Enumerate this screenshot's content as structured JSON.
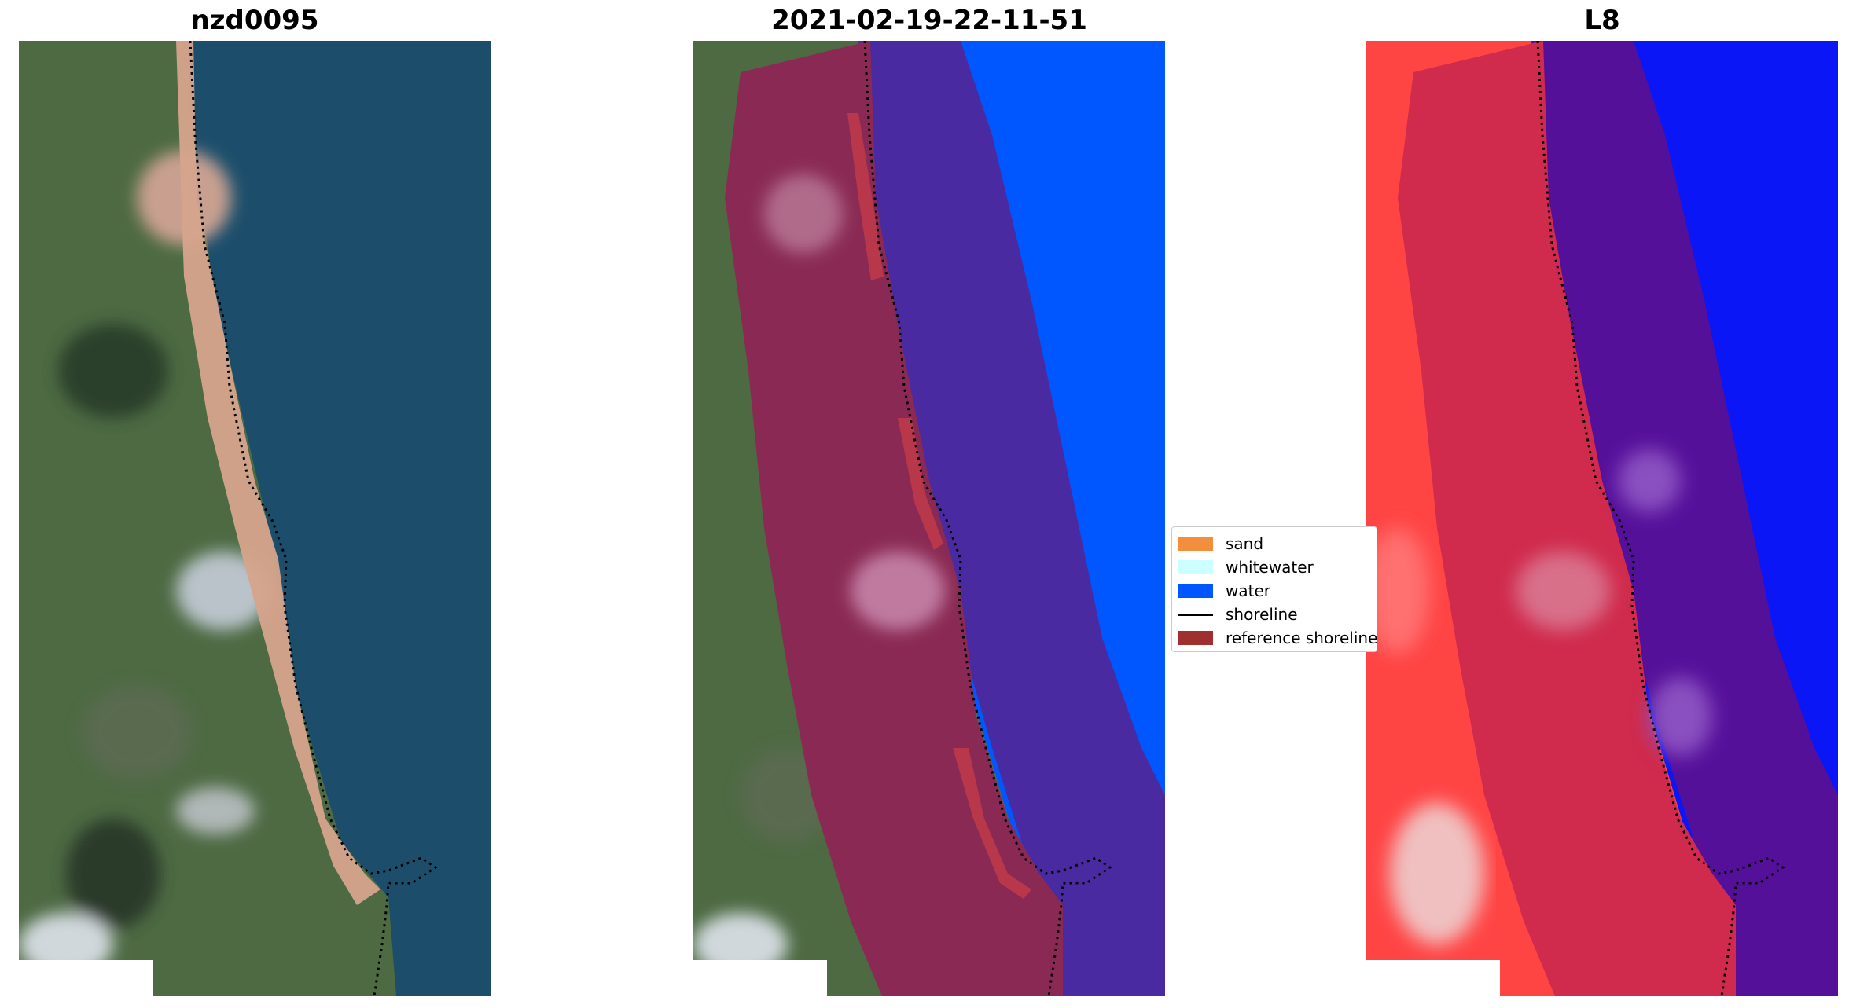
{
  "panels": {
    "left": {
      "title": "nzd0095"
    },
    "middle": {
      "title": "2021-02-19-22-11-51"
    },
    "right": {
      "title": "L8"
    }
  },
  "legend": {
    "items": [
      {
        "label": "sand",
        "color": "#f28e3c",
        "kind": "patch"
      },
      {
        "label": "whitewater",
        "color": "#ccffff",
        "kind": "patch"
      },
      {
        "label": "water",
        "color": "#0057ff",
        "kind": "patch"
      },
      {
        "label": "shoreline",
        "color": "#000000",
        "kind": "line"
      },
      {
        "label": "reference shoreline",
        "color": "#a03030",
        "kind": "patch"
      }
    ]
  },
  "colors": {
    "ocean": "#1c4e6b",
    "land": "#4d6a43",
    "beach": "#d6a48c",
    "classified_water": "#0057ff",
    "buffer_land": "#8a2a54",
    "buffer_water": "#4a2aa0",
    "index_land": "#ff4444",
    "index_buffer_land": "#d02a4c",
    "index_buffer_water": "#55109a",
    "index_water": "#0a16f5"
  }
}
